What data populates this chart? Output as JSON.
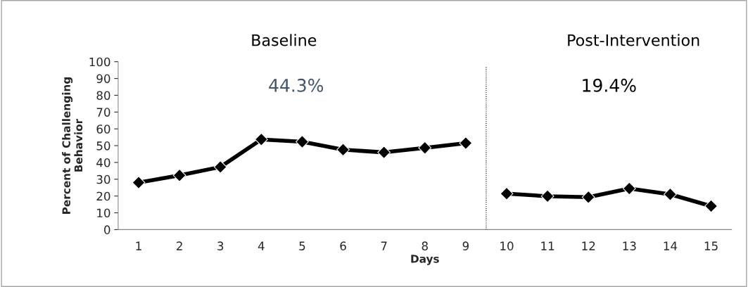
{
  "chart_data": {
    "type": "line",
    "xlabel": "Days",
    "ylabel": "Percent of Challenging\nBehavior",
    "x": [
      1,
      2,
      3,
      4,
      5,
      6,
      7,
      8,
      9,
      10,
      11,
      12,
      13,
      14,
      15
    ],
    "series": [
      {
        "color": "#000000",
        "values": [
          28,
          32.3,
          37.3,
          53.7,
          52.3,
          47.6,
          46,
          48.7,
          51.5,
          null,
          null,
          null,
          null,
          null,
          null
        ]
      },
      {
        "color": "#000000",
        "values": [
          null,
          null,
          null,
          null,
          null,
          null,
          null,
          null,
          null,
          21.4,
          19.9,
          19.3,
          24.5,
          21,
          14
        ]
      }
    ],
    "xlim": [
      0.5,
      15.5
    ],
    "xticks": [
      1,
      2,
      3,
      4,
      5,
      6,
      7,
      8,
      9,
      10,
      11,
      12,
      13,
      14,
      15
    ],
    "ylim": [
      0,
      100
    ],
    "yticks": [
      0,
      10,
      20,
      30,
      40,
      50,
      60,
      70,
      80,
      90,
      100
    ],
    "ref_lines": [
      {
        "axis": "x",
        "value": 9.5,
        "line_style": "dotted",
        "color": "#000000"
      }
    ],
    "annotations": [
      "Baseline",
      "Post-Intervention",
      "44.3%",
      "19.4%"
    ],
    "marker": "diamond",
    "line_style": "solid",
    "grid": false,
    "legend": false
  }
}
